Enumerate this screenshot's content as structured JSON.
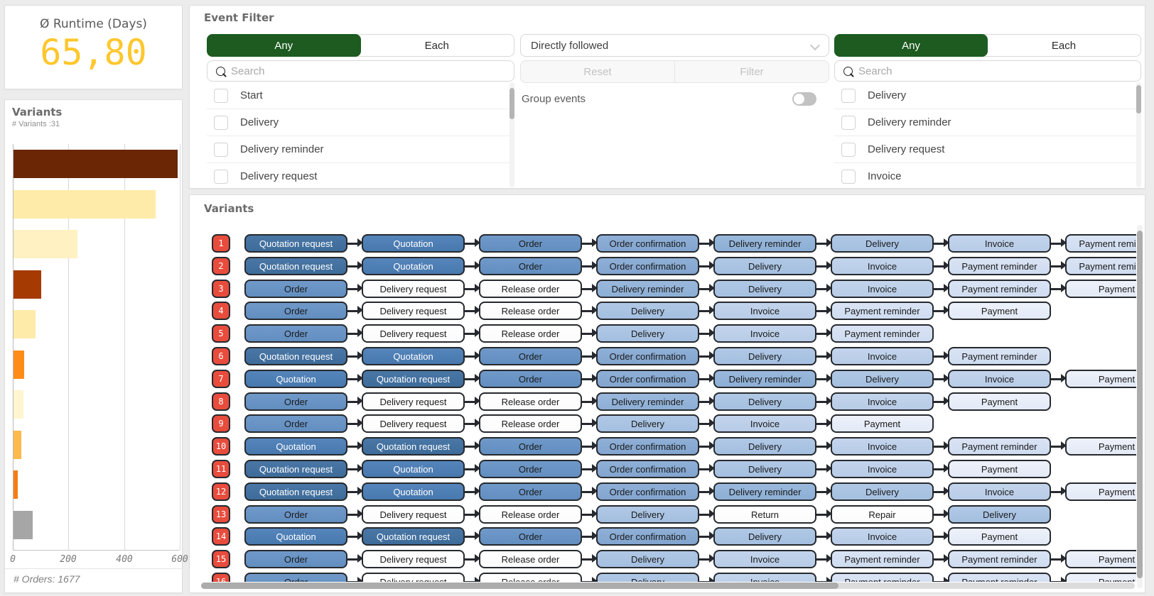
{
  "kpi": {
    "title": "Ø Runtime (Days)",
    "value": "65,80",
    "value_color": "#FFC72E"
  },
  "variants_chart": {
    "title": "Variants",
    "subtitle": "# Variants :31",
    "footer": "# Orders: 1677"
  },
  "chart_data": {
    "type": "bar",
    "orientation": "horizontal",
    "title": "Variants",
    "values": [
      590,
      510,
      230,
      100,
      80,
      38,
      36,
      28,
      15,
      70
    ],
    "bar_colors": [
      "#6B2605",
      "#FFEBA9",
      "#FFF1C1",
      "#A53A03",
      "#FFEBA9",
      "#FD8D18",
      "#FFF5D0",
      "#FDB94E",
      "#F57D15",
      "#A6A6A6"
    ],
    "xticks": [
      0,
      200,
      400,
      600
    ],
    "xlim": [
      0,
      620
    ],
    "xlabel": "",
    "ylabel": "",
    "grid": true,
    "footer": "# Orders: 1677"
  },
  "event_filter": {
    "title": "Event Filter",
    "left": {
      "toggle": {
        "options": [
          "Any",
          "Each"
        ],
        "selected": "Any"
      },
      "search_placeholder": "Search",
      "items": [
        "Start",
        "Delivery",
        "Delivery reminder",
        "Delivery request"
      ]
    },
    "middle": {
      "dropdown_value": "Directly followed",
      "reset_label": "Reset",
      "filter_label": "Filter",
      "group_events_label": "Group events",
      "group_events_on": false
    },
    "right": {
      "toggle": {
        "options": [
          "Any",
          "Each"
        ],
        "selected": "Any"
      },
      "search_placeholder": "Search",
      "items": [
        "Delivery",
        "Delivery reminder",
        "Delivery request",
        "Invoice"
      ]
    },
    "accent_green": "#1D5B20"
  },
  "variants_panel": {
    "title": "Variants",
    "badge_color": "#E84C3D",
    "rows": [
      {
        "id": "1",
        "events": [
          "Quotation request",
          "Quotation",
          "Order",
          "Order confirmation",
          "Delivery reminder",
          "Delivery",
          "Invoice",
          "Payment reminder"
        ]
      },
      {
        "id": "2",
        "events": [
          "Quotation request",
          "Quotation",
          "Order",
          "Order confirmation",
          "Delivery",
          "Invoice",
          "Payment reminder",
          "Payment reminder"
        ]
      },
      {
        "id": "3",
        "events": [
          "Order",
          "Delivery request",
          "Release order",
          "Delivery reminder",
          "Delivery",
          "Invoice",
          "Payment reminder",
          "Payment"
        ]
      },
      {
        "id": "4",
        "events": [
          "Order",
          "Delivery request",
          "Release order",
          "Delivery",
          "Invoice",
          "Payment reminder",
          "Payment"
        ]
      },
      {
        "id": "5",
        "events": [
          "Order",
          "Delivery request",
          "Release order",
          "Delivery",
          "Invoice",
          "Payment reminder"
        ]
      },
      {
        "id": "6",
        "events": [
          "Quotation request",
          "Quotation",
          "Order",
          "Order confirmation",
          "Delivery",
          "Invoice",
          "Payment reminder"
        ]
      },
      {
        "id": "7",
        "events": [
          "Quotation",
          "Quotation request",
          "Order",
          "Order confirmation",
          "Delivery reminder",
          "Delivery",
          "Invoice",
          "Payment"
        ]
      },
      {
        "id": "8",
        "events": [
          "Order",
          "Delivery request",
          "Release order",
          "Delivery reminder",
          "Delivery",
          "Invoice",
          "Payment"
        ]
      },
      {
        "id": "9",
        "events": [
          "Order",
          "Delivery request",
          "Release order",
          "Delivery",
          "Invoice",
          "Payment"
        ]
      },
      {
        "id": "10",
        "events": [
          "Quotation",
          "Quotation request",
          "Order",
          "Order confirmation",
          "Delivery",
          "Invoice",
          "Payment reminder",
          "Payment"
        ]
      },
      {
        "id": "11",
        "events": [
          "Quotation request",
          "Quotation",
          "Order",
          "Order confirmation",
          "Delivery",
          "Invoice",
          "Payment"
        ]
      },
      {
        "id": "12",
        "events": [
          "Quotation request",
          "Quotation",
          "Order",
          "Order confirmation",
          "Delivery reminder",
          "Delivery",
          "Invoice",
          "Payment"
        ]
      },
      {
        "id": "13",
        "events": [
          "Order",
          "Delivery request",
          "Release order",
          "Delivery",
          "Return",
          "Repair",
          "Delivery"
        ]
      },
      {
        "id": "14",
        "events": [
          "Quotation",
          "Quotation request",
          "Order",
          "Order confirmation",
          "Delivery",
          "Invoice",
          "Payment"
        ]
      },
      {
        "id": "15",
        "events": [
          "Order",
          "Delivery request",
          "Release order",
          "Delivery",
          "Invoice",
          "Payment reminder",
          "Payment reminder",
          "Payment"
        ]
      },
      {
        "id": "16",
        "events": [
          "Order",
          "Delivery request",
          "Release order",
          "Delivery",
          "Invoice",
          "Payment reminder",
          "Payment reminder",
          "Payment"
        ],
        "partial": true
      }
    ],
    "event_colors": {
      "Quotation request": {
        "top": "#4A77A6",
        "bottom": "#3E6C9A",
        "text": "#FFFFFF"
      },
      "Quotation": {
        "top": "#5585BB",
        "bottom": "#4778AE",
        "text": "#FFFFFF"
      },
      "Order": {
        "top": "#7099C9",
        "bottom": "#628EC0",
        "text": "#1A1A1A"
      },
      "Order confirmation": {
        "top": "#8FAFD6",
        "bottom": "#82A5CF",
        "text": "#1A1A1A"
      },
      "Delivery reminder": {
        "top": "#9AB8DC",
        "bottom": "#8DAFD5",
        "text": "#1A1A1A"
      },
      "Delivery": {
        "top": "#B0C8E5",
        "bottom": "#A4BFE0",
        "text": "#1A1A1A"
      },
      "Invoice": {
        "top": "#C3D4EC",
        "bottom": "#B8CCE7",
        "text": "#1A1A1A"
      },
      "Payment reminder": {
        "top": "#D9E3F4",
        "bottom": "#CFDCF0",
        "text": "#1A1A1A"
      },
      "Payment": {
        "top": "#EDF1FA",
        "bottom": "#E3EAF6",
        "text": "#1A1A1A"
      },
      "Delivery request": {
        "top": "#FFFFFF",
        "bottom": "#FBFBFB",
        "text": "#1A1A1A"
      },
      "Release order": {
        "top": "#FFFFFF",
        "bottom": "#FBFBFB",
        "text": "#1A1A1A"
      },
      "Return": {
        "top": "#FFFFFF",
        "bottom": "#FBFBFB",
        "text": "#1A1A1A"
      },
      "Repair": {
        "top": "#FFFFFF",
        "bottom": "#FBFBFB",
        "text": "#1A1A1A"
      }
    }
  }
}
